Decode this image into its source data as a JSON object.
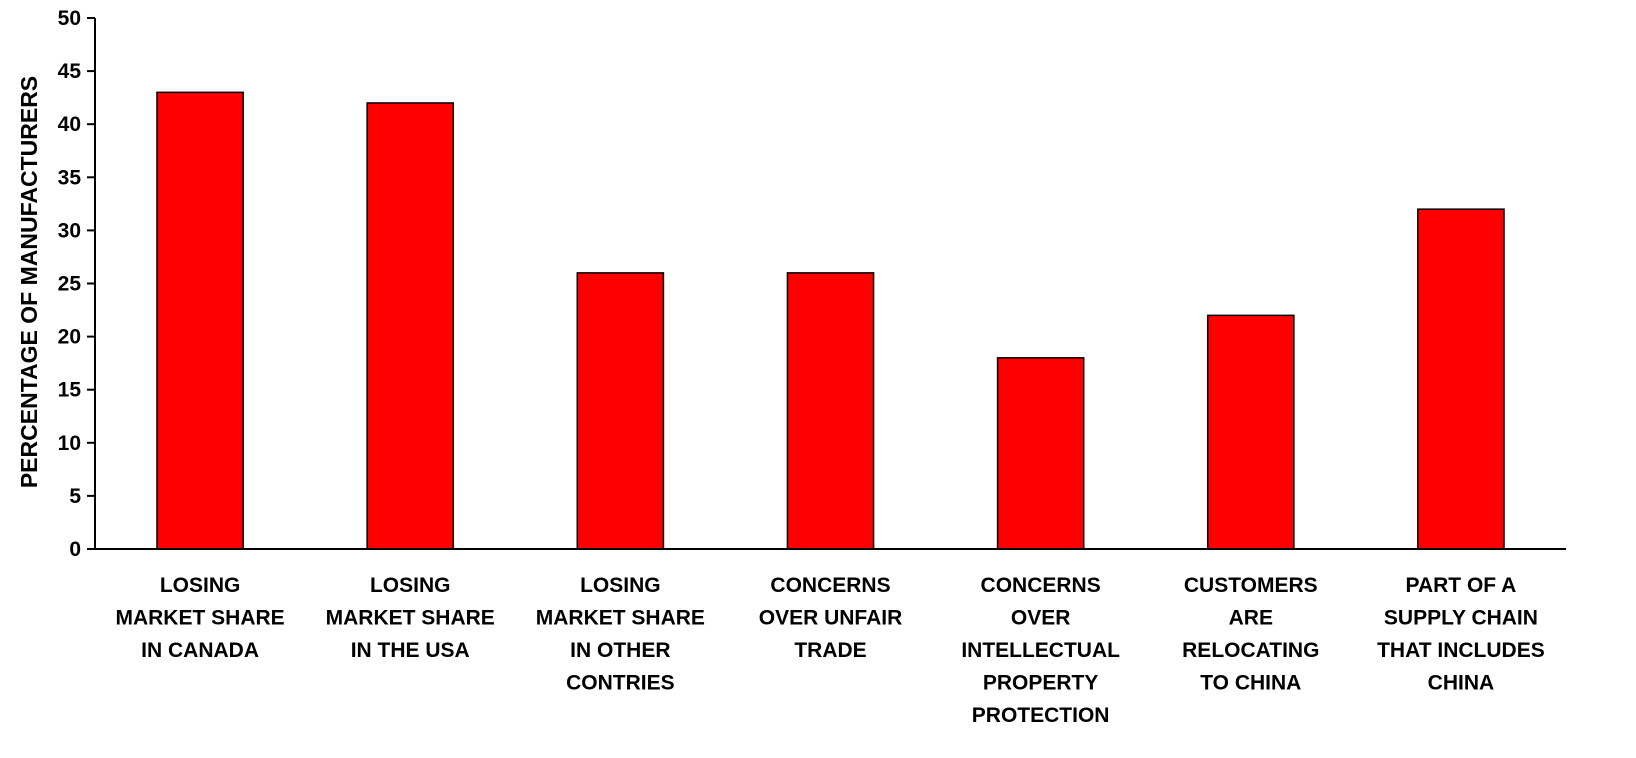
{
  "chart_data": {
    "type": "bar",
    "title": "",
    "xlabel": "",
    "ylabel": "PERCENTAGE OF MANUFACTURERS",
    "ylim": [
      0,
      50
    ],
    "yticks": [
      0,
      5,
      10,
      15,
      20,
      25,
      30,
      35,
      40,
      45,
      50
    ],
    "grid": false,
    "legend": "none",
    "bar_color": "#FF0000",
    "categories": [
      [
        "LOSING",
        "MARKET SHARE",
        "IN CANADA"
      ],
      [
        "LOSING",
        "MARKET SHARE",
        "IN THE USA"
      ],
      [
        "LOSING",
        "MARKET SHARE",
        "IN OTHER",
        "CONTRIES"
      ],
      [
        "CONCERNS",
        "OVER UNFAIR",
        "TRADE"
      ],
      [
        "CONCERNS",
        "OVER",
        "INTELLECTUAL",
        "PROPERTY",
        "PROTECTION"
      ],
      [
        "CUSTOMERS",
        "ARE",
        "RELOCATING",
        "TO CHINA"
      ],
      [
        "PART OF A",
        "SUPPLY CHAIN",
        "THAT INCLUDES",
        "CHINA"
      ]
    ],
    "values": [
      43,
      42,
      26,
      26,
      18,
      22,
      32
    ]
  }
}
